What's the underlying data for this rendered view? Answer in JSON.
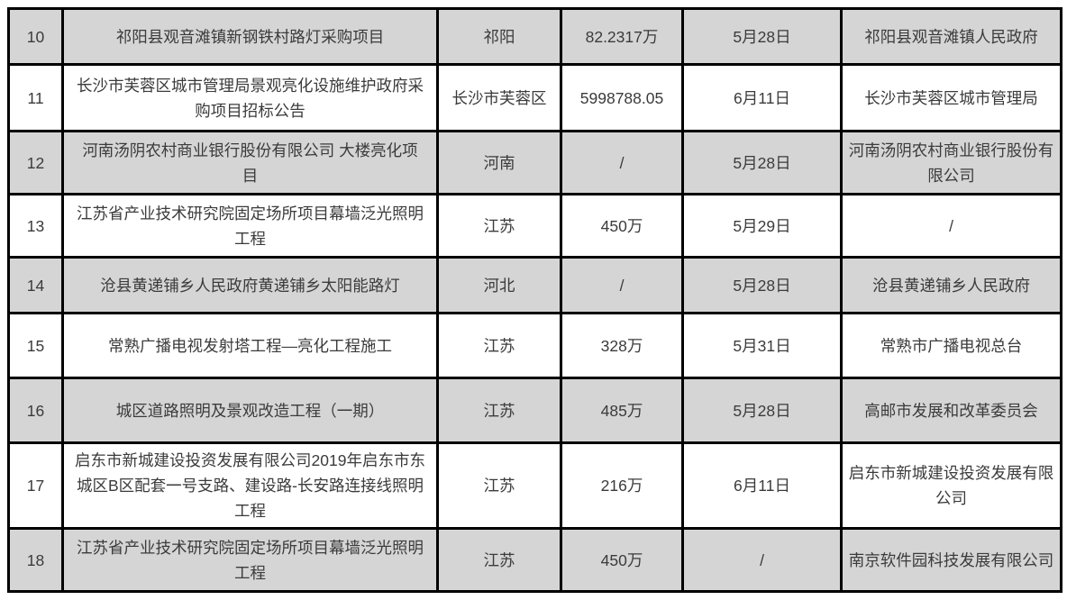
{
  "table": {
    "description_fields": [
      "index",
      "project",
      "region",
      "amount",
      "date",
      "organization"
    ],
    "colors": {
      "shaded_row_bg": "#d5d5d5",
      "plain_row_bg": "#ffffff",
      "border": "#000000",
      "text": "#3b3b3b"
    },
    "rows": [
      {
        "index": "10",
        "project": "祁阳县观音滩镇新钢铁村路灯采购项目",
        "region": "祁阳",
        "amount": "82.2317万",
        "date": "5月28日",
        "organization": "祁阳县观音滩镇人民政府"
      },
      {
        "index": "11",
        "project": "长沙市芙蓉区城市管理局景观亮化设施维护政府采购项目招标公告",
        "region": "长沙市芙蓉区",
        "amount": "5998788.05",
        "date": "6月11日",
        "organization": "长沙市芙蓉区城市管理局"
      },
      {
        "index": "12",
        "project": "河南汤阴农村商业银行股份有限公司 大楼亮化项目",
        "region": "河南",
        "amount": "/",
        "date": "5月28日",
        "organization": "河南汤阴农村商业银行股份有限公司"
      },
      {
        "index": "13",
        "project": "江苏省产业技术研究院固定场所项目幕墙泛光照明工程",
        "region": "江苏",
        "amount": "450万",
        "date": "5月29日",
        "organization": "/"
      },
      {
        "index": "14",
        "project": "沧县黄递铺乡人民政府黄递铺乡太阳能路灯",
        "region": "河北",
        "amount": "/",
        "date": "5月28日",
        "organization": "沧县黄递铺乡人民政府"
      },
      {
        "index": "15",
        "project": "常熟广播电视发射塔工程—亮化工程施工",
        "region": "江苏",
        "amount": "328万",
        "date": "5月31日",
        "organization": "常熟市广播电视总台"
      },
      {
        "index": "16",
        "project": "城区道路照明及景观改造工程（一期）",
        "region": "江苏",
        "amount": "485万",
        "date": "5月28日",
        "organization": "高邮市发展和改革委员会"
      },
      {
        "index": "17",
        "project": "启东市新城建设投资发展有限公司2019年启东市东城区B区配套一号支路、建设路-长安路连接线照明工程",
        "region": "江苏",
        "amount": "216万",
        "date": "6月11日",
        "organization": "启东市新城建设投资发展有限公司"
      },
      {
        "index": "18",
        "project": "江苏省产业技术研究院固定场所项目幕墙泛光照明工程",
        "region": "江苏",
        "amount": "450万",
        "date": "/",
        "organization": "南京软件园科技发展有限公司"
      }
    ]
  }
}
